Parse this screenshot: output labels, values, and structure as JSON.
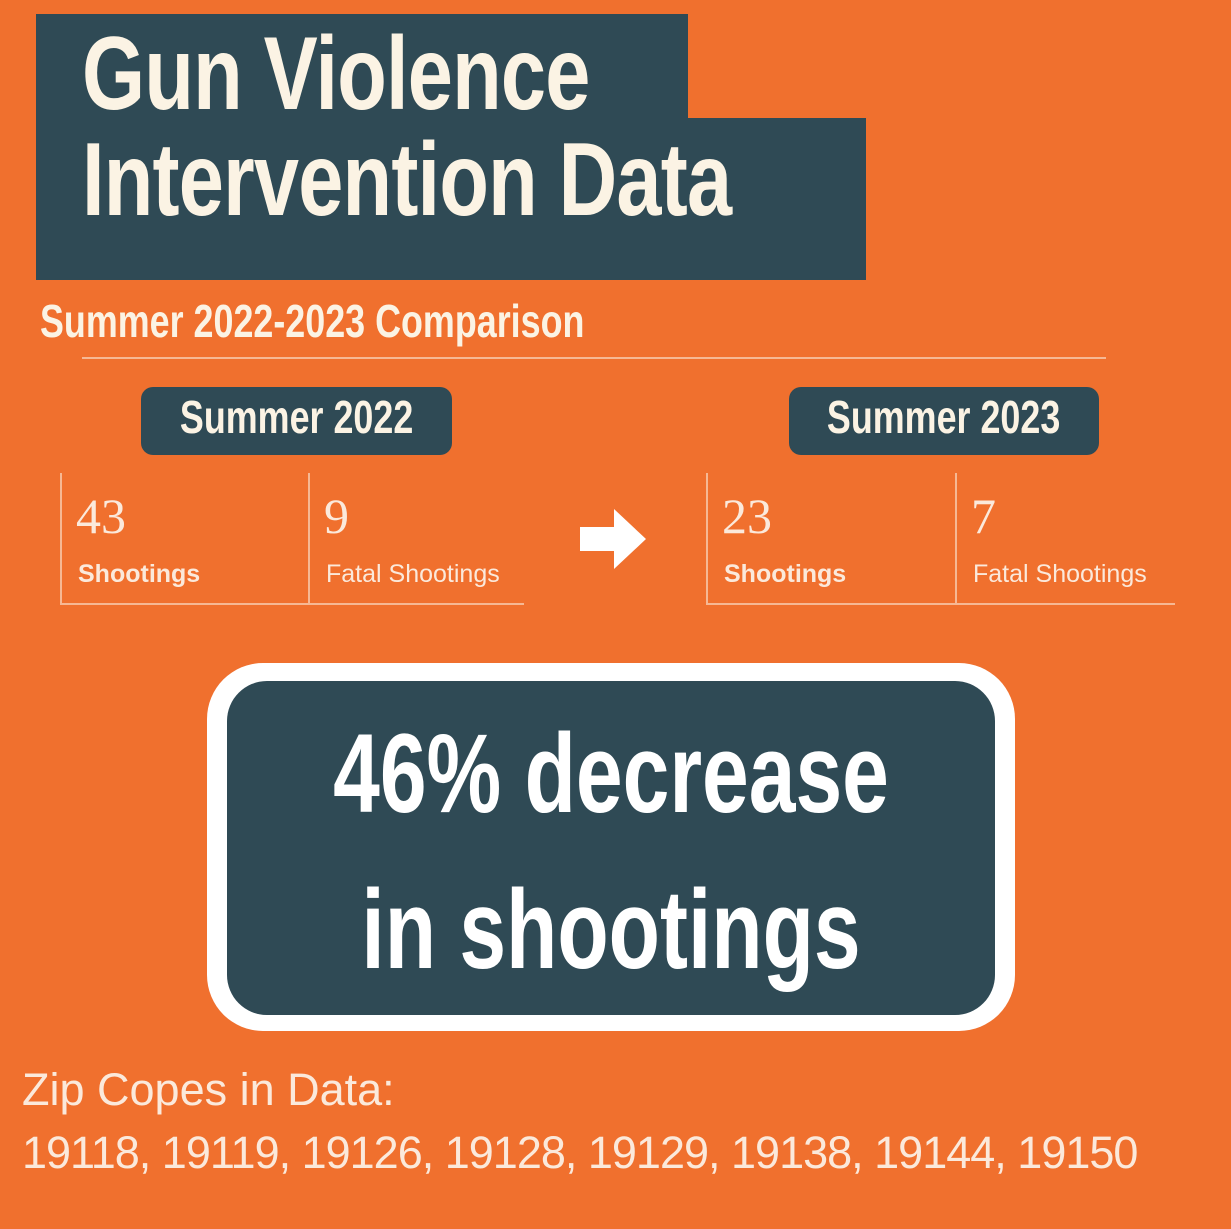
{
  "title": {
    "line1": "Gun Violence",
    "line2": "Intervention Data"
  },
  "subtitle": "Summer 2022-2023 Comparison",
  "periods": [
    {
      "label": "Summer 2022",
      "stats": [
        {
          "value": "43",
          "label": "Shootings"
        },
        {
          "value": "9",
          "label": "Fatal Shootings"
        }
      ]
    },
    {
      "label": "Summer 2023",
      "stats": [
        {
          "value": "23",
          "label": "Shootings"
        },
        {
          "value": "7",
          "label": "Fatal Shootings"
        }
      ]
    }
  ],
  "highlight": {
    "line1": "46% decrease",
    "line2": "in shootings"
  },
  "zip": {
    "label": "Zip Copes in Data:",
    "list": "19118, 19119, 19126, 19128, 19129, 19138, 19144, 19150"
  },
  "colors": {
    "background": "#F0702E",
    "panel": "#2F4A55",
    "text": "#FBF3E4"
  },
  "icons": {
    "arrow": "right-arrow-icon"
  }
}
